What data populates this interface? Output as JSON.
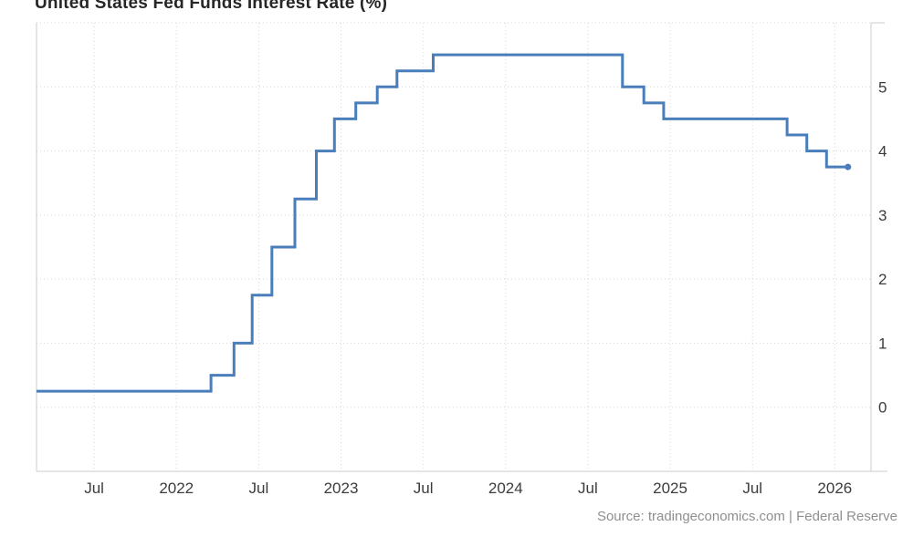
{
  "header": {
    "title": "United States Fed Funds Interest Rate (%)"
  },
  "footer": {
    "source": "Source: tradingeconomics.com | Federal Reserve"
  },
  "chart_data": {
    "type": "line",
    "subtype": "step-after",
    "title": "United States Fed Funds Interest Rate (%)",
    "source": "Source: tradingeconomics.com | Federal Reserve",
    "line_color": "#4a7ebb",
    "grid_color": "#d6d6d6",
    "border_color": "#cccccc",
    "label_color": "#3c3c3c",
    "grid": true,
    "legend": "none",
    "y_axis_side": "right",
    "x_domain": [
      2021.15,
      2026.22
    ],
    "y_domain": [
      -1,
      6
    ],
    "x_ticks": [
      {
        "x": 2021.5,
        "label": "Jul"
      },
      {
        "x": 2022.0,
        "label": "2022"
      },
      {
        "x": 2022.5,
        "label": "Jul"
      },
      {
        "x": 2023.0,
        "label": "2023"
      },
      {
        "x": 2023.5,
        "label": "Jul"
      },
      {
        "x": 2024.0,
        "label": "2024"
      },
      {
        "x": 2024.5,
        "label": "Jul"
      },
      {
        "x": 2025.0,
        "label": "2025"
      },
      {
        "x": 2025.5,
        "label": "Jul"
      },
      {
        "x": 2026.0,
        "label": "2026"
      }
    ],
    "y_ticks": [
      {
        "y": 0,
        "label": "0"
      },
      {
        "y": 1,
        "label": "1"
      },
      {
        "y": 2,
        "label": "2"
      },
      {
        "y": 3,
        "label": "3"
      },
      {
        "y": 4,
        "label": "4"
      },
      {
        "y": 5,
        "label": "5"
      }
    ],
    "series": [
      {
        "name": "Fed Funds Interest Rate (%)",
        "step": "after",
        "end_marker": true,
        "points": [
          {
            "x": 2021.15,
            "y": 0.25
          },
          {
            "x": 2022.21,
            "y": 0.5
          },
          {
            "x": 2022.35,
            "y": 1.0
          },
          {
            "x": 2022.46,
            "y": 1.75
          },
          {
            "x": 2022.58,
            "y": 2.5
          },
          {
            "x": 2022.72,
            "y": 3.25
          },
          {
            "x": 2022.85,
            "y": 4.0
          },
          {
            "x": 2022.96,
            "y": 4.5
          },
          {
            "x": 2023.09,
            "y": 4.75
          },
          {
            "x": 2023.22,
            "y": 5.0
          },
          {
            "x": 2023.34,
            "y": 5.25
          },
          {
            "x": 2023.56,
            "y": 5.5
          },
          {
            "x": 2024.71,
            "y": 5.0
          },
          {
            "x": 2024.84,
            "y": 4.75
          },
          {
            "x": 2024.96,
            "y": 4.5
          },
          {
            "x": 2025.71,
            "y": 4.25
          },
          {
            "x": 2025.83,
            "y": 4.0
          },
          {
            "x": 2025.95,
            "y": 3.75
          },
          {
            "x": 2026.08,
            "y": 3.75
          }
        ]
      }
    ]
  }
}
